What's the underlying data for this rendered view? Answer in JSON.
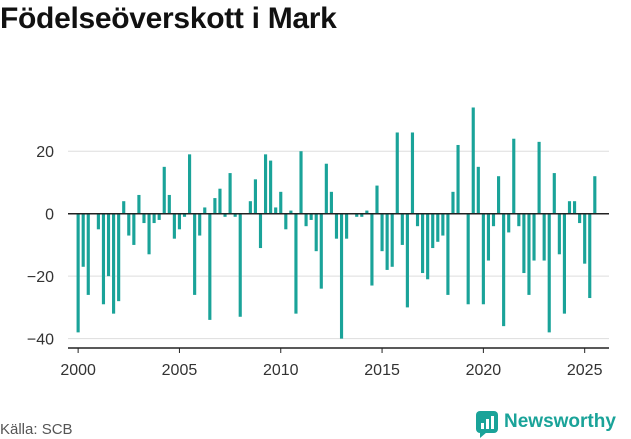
{
  "title": "Födelseöverskott i Mark",
  "source": "Källa: SCB",
  "brand": {
    "name": "Newsworthy",
    "icon": "newsworthy-chat-bar-icon"
  },
  "colors": {
    "bar": "#1aa399",
    "grid": "#dddddd",
    "zero": "#222222",
    "text": "#333333"
  },
  "chart_data": {
    "type": "bar",
    "title": "Födelseöverskott i Mark",
    "xlabel": "",
    "ylabel": "",
    "ylim": [
      -43,
      38
    ],
    "xlim": [
      1999.5,
      2026.2
    ],
    "yticks": [
      -40,
      -20,
      0,
      20
    ],
    "ytick_labels": [
      "−40",
      "−20",
      "0",
      "20"
    ],
    "xticks": [
      2000,
      2005,
      2010,
      2015,
      2020,
      2025
    ],
    "xtick_labels": [
      "2000",
      "2005",
      "2010",
      "2015",
      "2020",
      "2025"
    ],
    "grid": "horizontal",
    "frequency": "quarterly",
    "series": [
      {
        "values": [
          -38,
          -17,
          -26,
          0,
          -5,
          -29,
          -20,
          -32,
          -28,
          4,
          -7,
          -10,
          6,
          -3,
          -13,
          -3,
          -2,
          15,
          6,
          -8,
          -5,
          -1,
          19,
          -26,
          -7,
          2,
          -34,
          5,
          8,
          -1,
          13,
          -1,
          -33,
          0,
          4,
          11,
          -11,
          19,
          17,
          2,
          7,
          -5,
          1,
          -32,
          20,
          -4,
          -2,
          -12,
          -24,
          16,
          7,
          -8,
          -40,
          -8,
          0,
          -1,
          -1,
          1,
          -23,
          9,
          -12,
          -18,
          -17,
          26,
          -10,
          -30,
          26,
          -4,
          -19,
          -21,
          -11,
          -9,
          -7,
          -26,
          7,
          22,
          0,
          -29,
          34,
          15,
          -29,
          -15,
          -4,
          12,
          -36,
          -6,
          24,
          -4,
          -19,
          -26,
          -15,
          23,
          -15,
          -38,
          13,
          -13,
          -32,
          4,
          4,
          -3,
          -16,
          -27,
          12
        ]
      }
    ]
  }
}
